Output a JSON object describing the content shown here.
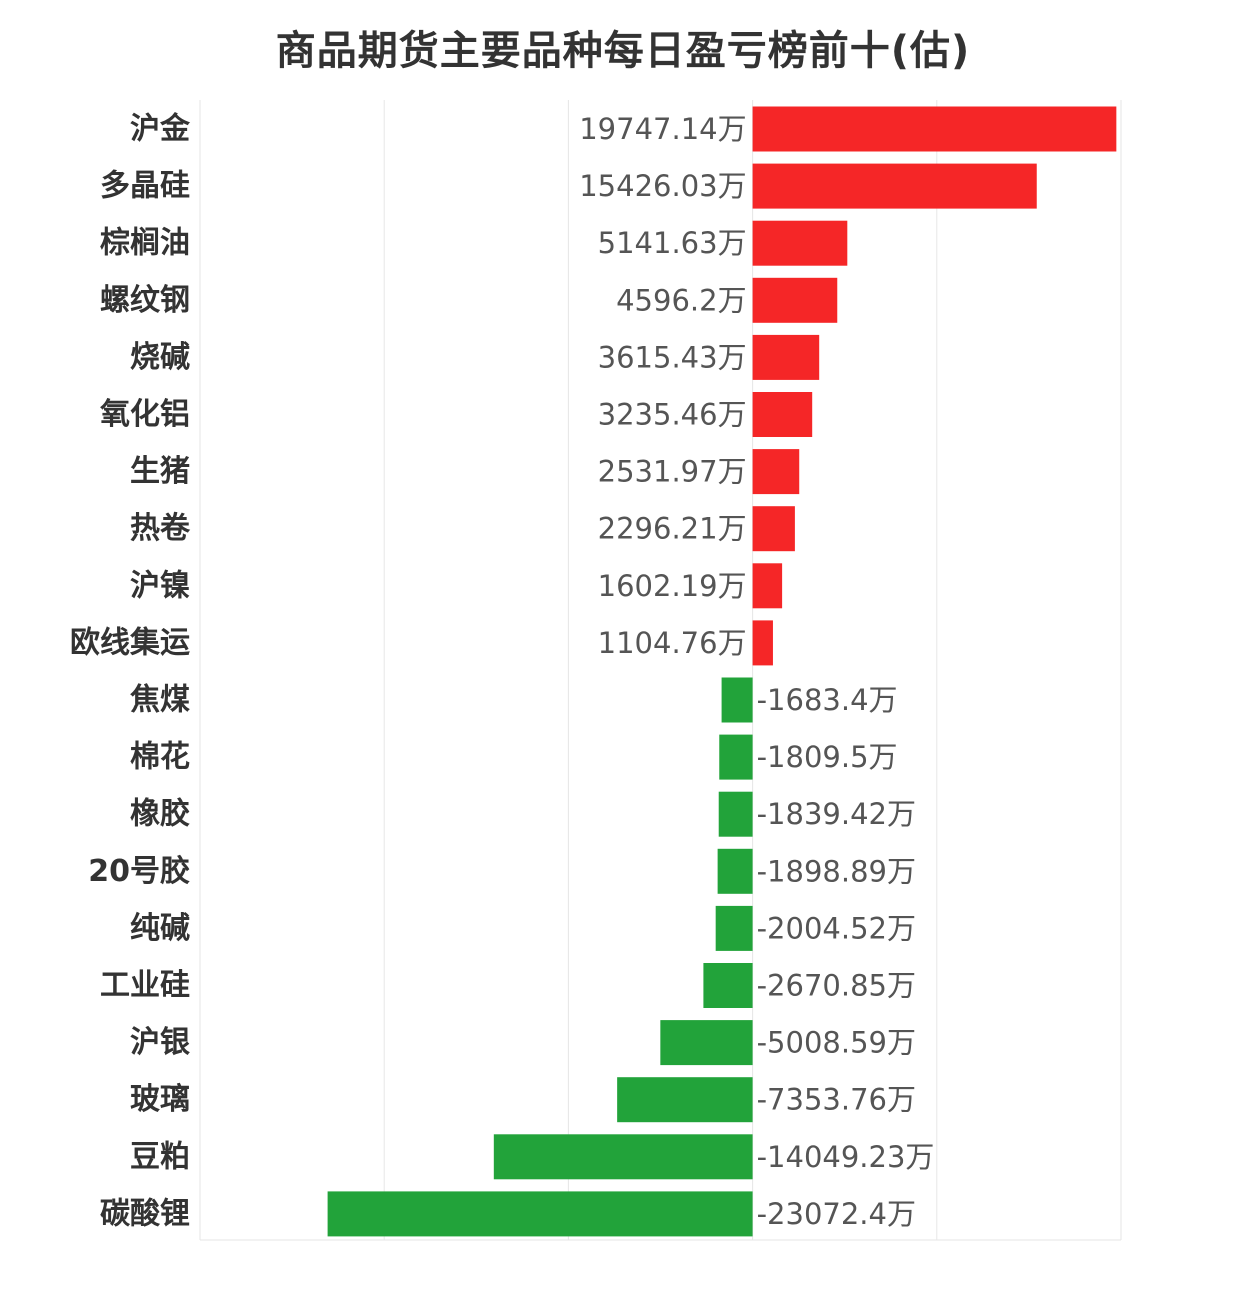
{
  "chart_data": {
    "type": "bar",
    "orientation": "horizontal",
    "title": "商品期货主要品种每日盈亏榜前十(估)",
    "categories": [
      "沪金",
      "多晶硅",
      "棕榈油",
      "螺纹钢",
      "烧碱",
      "氧化铝",
      "生猪",
      "热卷",
      "沪镍",
      "欧线集运",
      "焦煤",
      "棉花",
      "橡胶",
      "20号胶",
      "纯碱",
      "工业硅",
      "沪银",
      "玻璃",
      "豆粕",
      "碳酸锂"
    ],
    "values": [
      19747.14,
      15426.03,
      5141.63,
      4596.2,
      3615.43,
      3235.46,
      2531.97,
      2296.21,
      1602.19,
      1104.76,
      -1683.4,
      -1809.5,
      -1839.42,
      -1898.89,
      -2004.52,
      -2670.85,
      -5008.59,
      -7353.76,
      -14049.23,
      -23072.4
    ],
    "value_labels": [
      "19747.14万",
      "15426.03万",
      "5141.63万",
      "4596.2万",
      "3615.43万",
      "3235.46万",
      "2531.97万",
      "2296.21万",
      "1602.19万",
      "1104.76万",
      "-1683.4万",
      "-1809.5万",
      "-1839.42万",
      "-1898.89万",
      "-2004.52万",
      "-2670.85万",
      "-5008.59万",
      "-7353.76万",
      "-14049.23万",
      "-23072.4万"
    ],
    "unit": "万",
    "xlim": [
      -30000,
      20000
    ],
    "grid": true,
    "colors": {
      "positive": "#f52627",
      "negative": "#22a33a",
      "grid": "#e6e6e6"
    }
  }
}
